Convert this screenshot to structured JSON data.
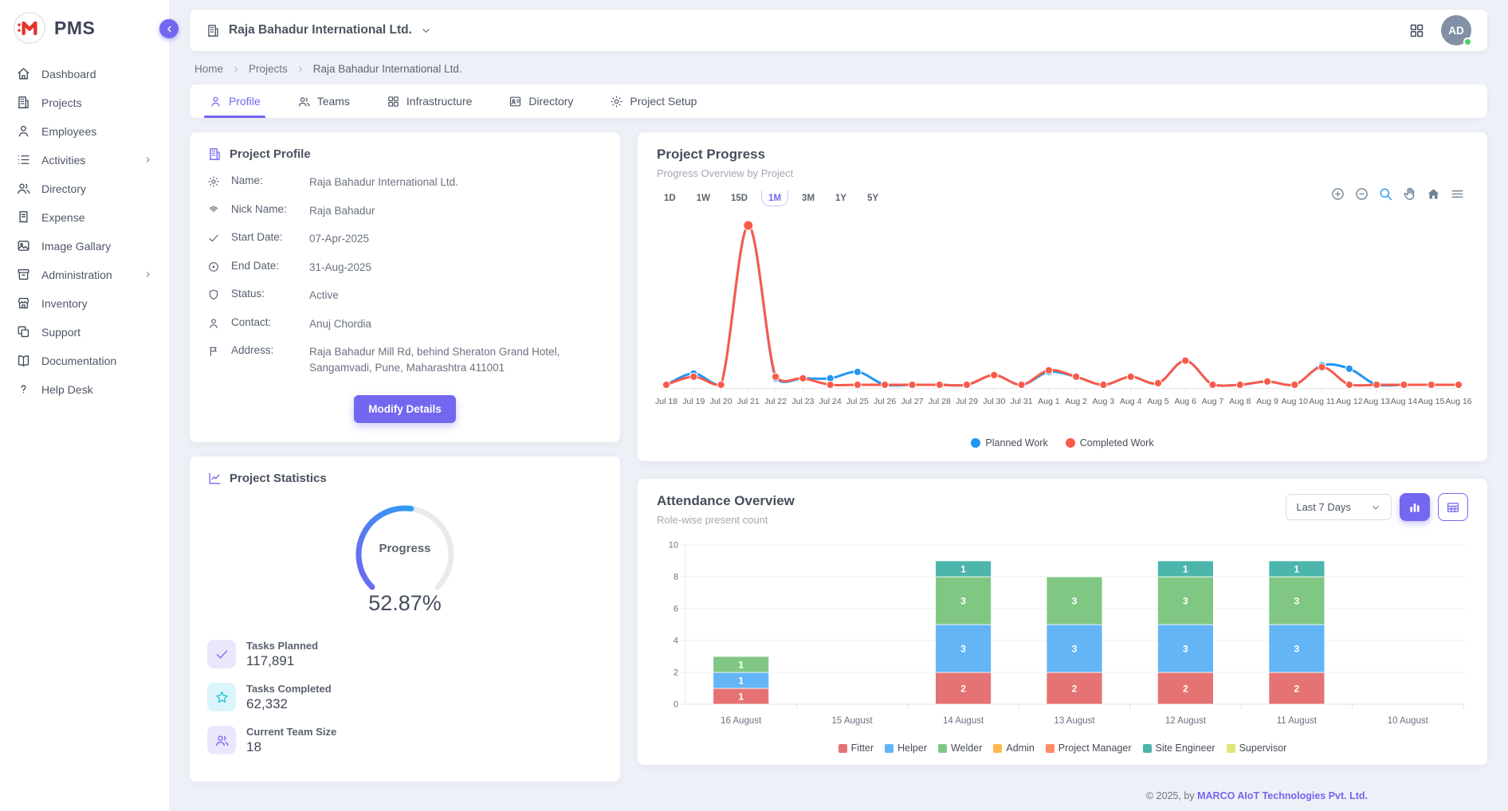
{
  "app": {
    "name": "PMS",
    "accent_color": "#7367f0",
    "logo_color": "#e3342b"
  },
  "sidebar": {
    "items": [
      {
        "label": "Dashboard",
        "icon": "home",
        "submenu": false
      },
      {
        "label": "Projects",
        "icon": "building",
        "submenu": false
      },
      {
        "label": "Employees",
        "icon": "user",
        "submenu": false
      },
      {
        "label": "Activities",
        "icon": "list",
        "submenu": true
      },
      {
        "label": "Directory",
        "icon": "users",
        "submenu": false
      },
      {
        "label": "Expense",
        "icon": "receipt",
        "submenu": false
      },
      {
        "label": "Image Gallary",
        "icon": "image",
        "submenu": false
      },
      {
        "label": "Administration",
        "icon": "archive",
        "submenu": true
      },
      {
        "label": "Inventory",
        "icon": "store",
        "submenu": false
      },
      {
        "label": "Support",
        "icon": "copy",
        "submenu": false
      },
      {
        "label": "Documentation",
        "icon": "book",
        "submenu": false
      },
      {
        "label": "Help Desk",
        "icon": "help",
        "submenu": false
      }
    ]
  },
  "header": {
    "company": "Raja Bahadur International Ltd.",
    "avatar_initials": "AD",
    "status_color": "#44d164"
  },
  "breadcrumb": {
    "items": [
      "Home",
      "Projects",
      "Raja Bahadur International Ltd."
    ]
  },
  "tabs": [
    {
      "label": "Profile",
      "icon": "user",
      "active": true
    },
    {
      "label": "Teams",
      "icon": "users",
      "active": false
    },
    {
      "label": "Infrastructure",
      "icon": "grid",
      "active": false
    },
    {
      "label": "Directory",
      "icon": "contact-card",
      "active": false
    },
    {
      "label": "Project Setup",
      "icon": "gear",
      "active": false
    }
  ],
  "profile_card": {
    "title": "Project Profile",
    "fields": [
      {
        "icon": "gear",
        "label": "Name:",
        "value": "Raja Bahadur International Ltd."
      },
      {
        "icon": "fingerprint",
        "label": "Nick Name:",
        "value": "Raja Bahadur"
      },
      {
        "icon": "check",
        "label": "Start Date:",
        "value": "07-Apr-2025"
      },
      {
        "icon": "circle-dot",
        "label": "End Date:",
        "value": "31-Aug-2025"
      },
      {
        "icon": "shield",
        "label": "Status:",
        "value": "Active"
      },
      {
        "icon": "user",
        "label": "Contact:",
        "value": "Anuj Chordia"
      },
      {
        "icon": "flag",
        "label": "Address:",
        "value": "Raja Bahadur Mill Rd, behind Sheraton Grand Hotel, Sangamvadi, Pune, Maharashtra 411001"
      }
    ],
    "button": "Modify Details"
  },
  "statistics_card": {
    "title": "Project Statistics",
    "gauge": {
      "label": "Progress",
      "value_text": "52.87%",
      "percent": 52.87,
      "track_color": "#e9e9ee",
      "start_color": "#7066f2",
      "end_color": "#2f9ef5"
    },
    "stats": [
      {
        "icon": "check",
        "label": "Tasks Planned",
        "value": "117,891",
        "tile_bg": "#eae7fd",
        "icon_color": "#7367f0"
      },
      {
        "icon": "star",
        "label": "Tasks Completed",
        "value": "62,332",
        "tile_bg": "#daf5fb",
        "icon_color": "#21c1dc"
      },
      {
        "icon": "users",
        "label": "Current Team Size",
        "value": "18",
        "tile_bg": "#eae7fd",
        "icon_color": "#7367f0"
      }
    ]
  },
  "progress_card": {
    "title": "Project Progress",
    "subtitle": "Progress Overview by Project",
    "ranges": [
      "1D",
      "1W",
      "15D",
      "1M",
      "3M",
      "1Y",
      "5Y"
    ],
    "active_range": "1M",
    "toolbar_icons": [
      "zoom-in",
      "zoom-out",
      "selection-zoom",
      "pan",
      "reset-home",
      "menu"
    ]
  },
  "attendance_card": {
    "title": "Attendance Overview",
    "subtitle": "Role-wise present count",
    "range_selector": "Last 7 Days",
    "view_buttons": [
      "bar-chart",
      "table"
    ]
  },
  "footer": {
    "text": "© 2025, by ",
    "link": "MARCO AIoT Technologies Pvt. Ltd."
  },
  "chart_data": [
    {
      "type": "line",
      "title": "Project Progress",
      "x": [
        "Jul 18",
        "Jul 19",
        "Jul 20",
        "Jul 21",
        "Jul 22",
        "Jul 23",
        "Jul 24",
        "Jul 25",
        "Jul 26",
        "Jul 27",
        "Jul 28",
        "Jul 29",
        "Jul 30",
        "Jul 31",
        "Aug 1",
        "Aug 2",
        "Aug 3",
        "Aug 4",
        "Aug 5",
        "Aug 6",
        "Aug 7",
        "Aug 8",
        "Aug 9",
        "Aug 10",
        "Aug 11",
        "Aug 12",
        "Aug 13",
        "Aug 14",
        "Aug 15",
        "Aug 16"
      ],
      "series": [
        {
          "name": "Planned Work",
          "color": "#2196f3",
          "values": [
            1,
            8,
            1,
            100,
            5,
            5,
            5,
            9,
            1,
            1,
            1,
            1,
            7,
            1,
            9,
            6,
            1,
            6,
            2,
            16,
            1,
            1,
            3,
            1,
            13,
            11,
            1,
            1,
            1,
            1
          ]
        },
        {
          "name": "Completed Work",
          "color": "#fa5a4a",
          "values": [
            1,
            6,
            1,
            100,
            6,
            5,
            1,
            1,
            1,
            1,
            1,
            1,
            7,
            1,
            10,
            6,
            1,
            6,
            2,
            16,
            1,
            1,
            3,
            1,
            12,
            1,
            1,
            1,
            1,
            1
          ]
        }
      ],
      "ylim": [
        0,
        110
      ],
      "grid": false,
      "legend_position": "bottom"
    },
    {
      "type": "bar",
      "stacked": true,
      "title": "Attendance Overview",
      "categories": [
        "16 August",
        "15 August",
        "14 August",
        "13 August",
        "12 August",
        "11 August",
        "10 August"
      ],
      "series": [
        {
          "name": "Fitter",
          "color": "#e57373",
          "values": [
            1,
            0,
            2,
            2,
            2,
            2,
            0
          ]
        },
        {
          "name": "Helper",
          "color": "#64b5f6",
          "values": [
            1,
            0,
            3,
            3,
            3,
            3,
            0
          ]
        },
        {
          "name": "Welder",
          "color": "#81c784",
          "values": [
            1,
            0,
            3,
            3,
            3,
            3,
            0
          ]
        },
        {
          "name": "Admin",
          "color": "#ffb74d",
          "values": [
            0,
            0,
            0,
            0,
            0,
            0,
            0
          ]
        },
        {
          "name": "Project Manager",
          "color": "#ff8a65",
          "values": [
            0,
            0,
            0,
            0,
            0,
            0,
            0
          ]
        },
        {
          "name": "Site Engineer",
          "color": "#4db6ac",
          "values": [
            0,
            0,
            1,
            0,
            1,
            1,
            0
          ]
        },
        {
          "name": "Supervisor",
          "color": "#dce775",
          "values": [
            0,
            0,
            0,
            0,
            0,
            0,
            0
          ]
        }
      ],
      "ylim": [
        0,
        10
      ],
      "yticks": [
        0,
        2,
        4,
        6,
        8,
        10
      ],
      "grid": true,
      "legend_position": "bottom"
    }
  ]
}
